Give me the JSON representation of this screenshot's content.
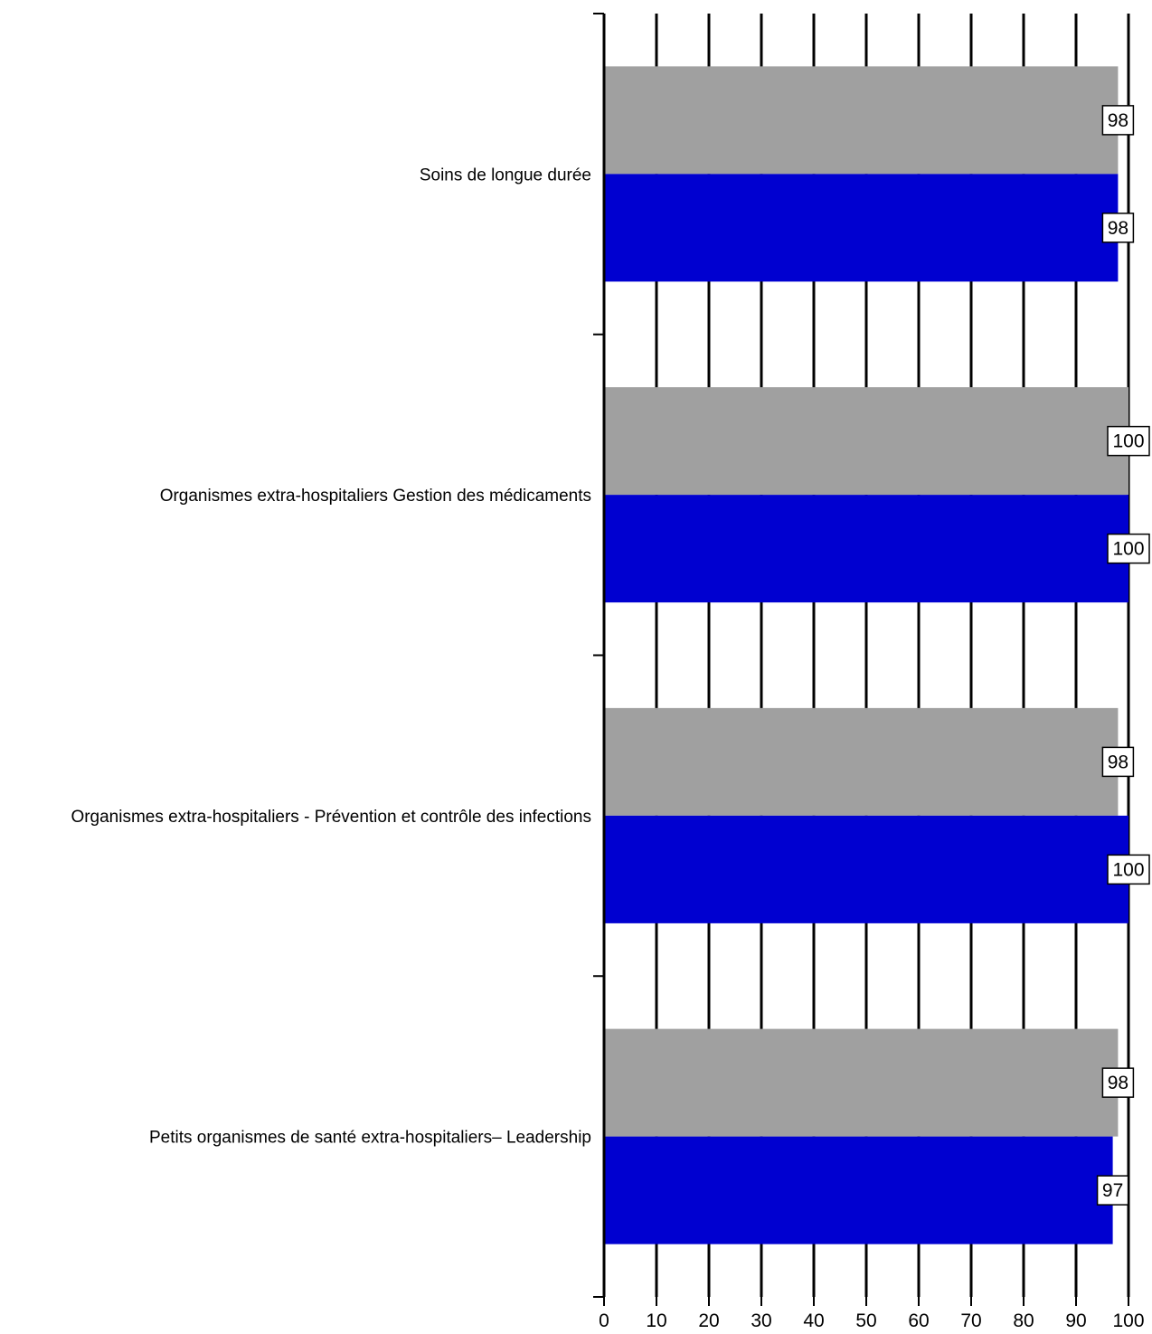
{
  "chart_data": {
    "type": "bar",
    "orientation": "horizontal",
    "categories": [
      "Soins de longue durée",
      "Organismes extra-hospitaliers Gestion des médicaments",
      "Organismes extra-hospitaliers - Prévention et contrôle des infections",
      "Petits organismes de santé extra-hospitaliers– Leadership"
    ],
    "series": [
      {
        "color": "#a0a0a0",
        "values": [
          98,
          100,
          98,
          98
        ]
      },
      {
        "color": "#0000d0",
        "values": [
          98,
          100,
          100,
          97
        ]
      }
    ],
    "xlim": [
      0,
      100
    ],
    "xticks": [
      "0",
      "10",
      "20",
      "30",
      "40",
      "50",
      "60",
      "70",
      "80",
      "90",
      "100"
    ],
    "grid": true,
    "data_labels": true,
    "legend": "none",
    "title": "",
    "xlabel": "",
    "ylabel": ""
  }
}
